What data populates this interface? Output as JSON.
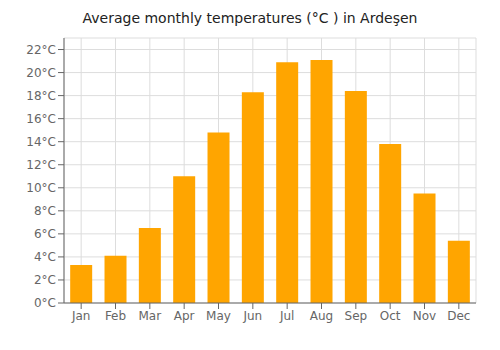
{
  "chart_data": {
    "type": "bar",
    "title": "Average monthly temperatures (°C ) in Ardeşen",
    "categories": [
      "Jan",
      "Feb",
      "Mar",
      "Apr",
      "May",
      "Jun",
      "Jul",
      "Aug",
      "Sep",
      "Oct",
      "Nov",
      "Dec"
    ],
    "values": [
      3.3,
      4.1,
      6.5,
      11.0,
      14.8,
      18.3,
      20.9,
      21.1,
      18.4,
      13.8,
      9.5,
      5.4
    ],
    "color": "#FFA500",
    "ylim": [
      0,
      23
    ],
    "yticks": [
      {
        "value": 0,
        "label": "0°C"
      },
      {
        "value": 2,
        "label": "2°C"
      },
      {
        "value": 4,
        "label": "4°C"
      },
      {
        "value": 6,
        "label": "6°C"
      },
      {
        "value": 8,
        "label": "8°C"
      },
      {
        "value": 10,
        "label": "10°C"
      },
      {
        "value": 12,
        "label": "12°C"
      },
      {
        "value": 14,
        "label": "14°C"
      },
      {
        "value": 16,
        "label": "16°C"
      },
      {
        "value": 18,
        "label": "18°C"
      },
      {
        "value": 20,
        "label": "20°C"
      },
      {
        "value": 22,
        "label": "22°C"
      }
    ],
    "grid": true
  }
}
